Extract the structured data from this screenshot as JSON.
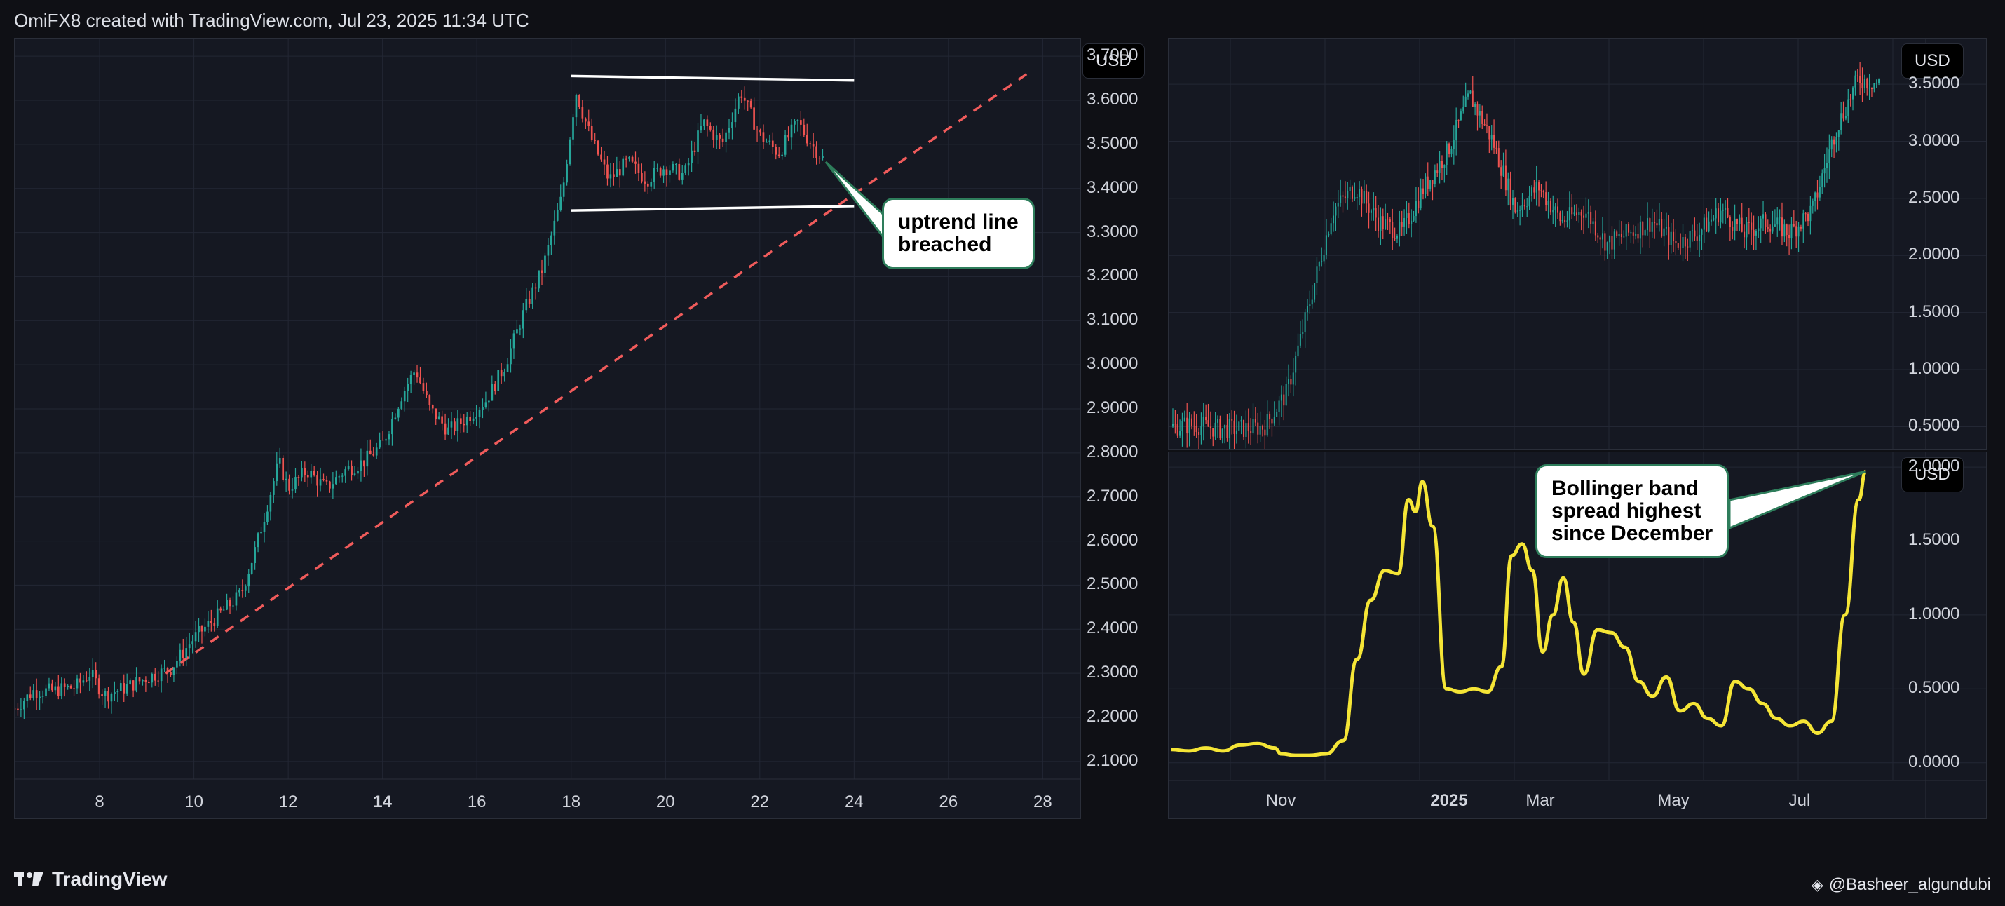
{
  "header": {
    "text": "OmiFX8 created with TradingView.com, Jul 23, 2025 11:34 UTC"
  },
  "footer": {
    "brand": "TradingView",
    "credit": "@Basheer_algundubi"
  },
  "chart_data": [
    {
      "id": "left-price",
      "type": "candlestick",
      "currency": "USD",
      "x_ticks": [
        "8",
        "10",
        "12",
        "14",
        "16",
        "18",
        "20",
        "22",
        "24",
        "26",
        "28"
      ],
      "x_range": [
        6.2,
        28.5
      ],
      "y_ticks": [
        "2.1000",
        "2.2000",
        "2.3000",
        "2.4000",
        "2.5000",
        "2.6000",
        "2.7000",
        "2.8000",
        "2.9000",
        "3.0000",
        "3.1000",
        "3.2000",
        "3.3000",
        "3.4000",
        "3.5000",
        "3.6000",
        "3.7000"
      ],
      "y_range": [
        2.06,
        3.74
      ],
      "series_close": [
        [
          6.2,
          2.22
        ],
        [
          6.6,
          2.26
        ],
        [
          7.0,
          2.26
        ],
        [
          7.5,
          2.27
        ],
        [
          7.8,
          2.3
        ],
        [
          8.1,
          2.25
        ],
        [
          8.6,
          2.27
        ],
        [
          9.0,
          2.29
        ],
        [
          9.5,
          2.31
        ],
        [
          10.0,
          2.38
        ],
        [
          10.5,
          2.43
        ],
        [
          11.0,
          2.48
        ],
        [
          11.3,
          2.58
        ],
        [
          11.6,
          2.7
        ],
        [
          11.8,
          2.78
        ],
        [
          12.0,
          2.72
        ],
        [
          12.4,
          2.76
        ],
        [
          12.8,
          2.72
        ],
        [
          13.2,
          2.76
        ],
        [
          13.6,
          2.78
        ],
        [
          14.0,
          2.82
        ],
        [
          14.4,
          2.93
        ],
        [
          14.7,
          2.99
        ],
        [
          15.0,
          2.9
        ],
        [
          15.4,
          2.85
        ],
        [
          15.8,
          2.88
        ],
        [
          16.2,
          2.92
        ],
        [
          16.6,
          3.0
        ],
        [
          17.0,
          3.12
        ],
        [
          17.4,
          3.22
        ],
        [
          17.8,
          3.38
        ],
        [
          18.1,
          3.62
        ],
        [
          18.4,
          3.52
        ],
        [
          18.8,
          3.42
        ],
        [
          19.2,
          3.46
        ],
        [
          19.6,
          3.42
        ],
        [
          20.0,
          3.45
        ],
        [
          20.4,
          3.43
        ],
        [
          20.8,
          3.55
        ],
        [
          21.2,
          3.5
        ],
        [
          21.6,
          3.62
        ],
        [
          22.0,
          3.52
        ],
        [
          22.4,
          3.48
        ],
        [
          22.8,
          3.55
        ],
        [
          23.1,
          3.5
        ],
        [
          23.4,
          3.46
        ]
      ],
      "annotations": [
        {
          "type": "trendline",
          "style": "dashed",
          "color": "#f05b5b",
          "from": [
            9.4,
            2.3
          ],
          "to": [
            27.8,
            3.67
          ]
        },
        {
          "type": "channel-upper",
          "color": "#ffffff",
          "from": [
            18.0,
            3.655
          ],
          "to": [
            24.0,
            3.645
          ]
        },
        {
          "type": "channel-lower",
          "color": "#ffffff",
          "from": [
            18.0,
            3.35
          ],
          "to": [
            24.0,
            3.36
          ]
        }
      ],
      "callout": "uptrend line\nbreached"
    },
    {
      "id": "right-price",
      "type": "candlestick",
      "currency": "USD",
      "y_ticks": [
        "0.5000",
        "1.0000",
        "1.5000",
        "2.0000",
        "2.5000",
        "3.0000",
        "3.5000"
      ],
      "y_range": [
        0.3,
        3.9
      ],
      "series_close": [
        [
          0,
          0.5
        ],
        [
          10,
          0.52
        ],
        [
          20,
          0.48
        ],
        [
          30,
          0.48
        ],
        [
          40,
          0.5
        ],
        [
          50,
          0.8
        ],
        [
          60,
          1.6
        ],
        [
          70,
          2.4
        ],
        [
          80,
          2.6
        ],
        [
          90,
          2.3
        ],
        [
          100,
          2.2
        ],
        [
          110,
          2.6
        ],
        [
          120,
          2.9
        ],
        [
          130,
          3.4
        ],
        [
          140,
          3.0
        ],
        [
          150,
          2.4
        ],
        [
          160,
          2.6
        ],
        [
          170,
          2.3
        ],
        [
          180,
          2.4
        ],
        [
          190,
          2.1
        ],
        [
          200,
          2.2
        ],
        [
          210,
          2.3
        ],
        [
          220,
          2.1
        ],
        [
          230,
          2.2
        ],
        [
          240,
          2.4
        ],
        [
          250,
          2.2
        ],
        [
          260,
          2.3
        ],
        [
          270,
          2.2
        ],
        [
          280,
          2.4
        ],
        [
          290,
          3.1
        ],
        [
          300,
          3.55
        ],
        [
          310,
          3.5
        ]
      ]
    },
    {
      "id": "right-bbw",
      "type": "line",
      "color": "#f5e536",
      "currency": "USD",
      "x_ticks": [
        "Nov",
        "2025",
        "Mar",
        "May",
        "Jul"
      ],
      "y_ticks": [
        "0.0000",
        "0.5000",
        "1.0000",
        "1.5000",
        "2.0000"
      ],
      "y_range": [
        -0.12,
        2.1
      ],
      "series": [
        [
          0,
          0.09
        ],
        [
          5,
          0.08
        ],
        [
          10,
          0.1
        ],
        [
          15,
          0.08
        ],
        [
          20,
          0.12
        ],
        [
          25,
          0.13
        ],
        [
          30,
          0.1
        ],
        [
          32,
          0.06
        ],
        [
          36,
          0.05
        ],
        [
          40,
          0.05
        ],
        [
          45,
          0.06
        ],
        [
          50,
          0.15
        ],
        [
          54,
          0.7
        ],
        [
          58,
          1.1
        ],
        [
          62,
          1.3
        ],
        [
          66,
          1.28
        ],
        [
          69,
          1.78
        ],
        [
          71,
          1.7
        ],
        [
          73,
          1.9
        ],
        [
          76,
          1.6
        ],
        [
          80,
          0.5
        ],
        [
          84,
          0.48
        ],
        [
          88,
          0.5
        ],
        [
          92,
          0.48
        ],
        [
          96,
          0.65
        ],
        [
          99,
          1.4
        ],
        [
          102,
          1.48
        ],
        [
          105,
          1.3
        ],
        [
          108,
          0.75
        ],
        [
          111,
          1.0
        ],
        [
          114,
          1.25
        ],
        [
          117,
          0.95
        ],
        [
          120,
          0.6
        ],
        [
          124,
          0.9
        ],
        [
          128,
          0.88
        ],
        [
          132,
          0.78
        ],
        [
          136,
          0.55
        ],
        [
          140,
          0.45
        ],
        [
          144,
          0.58
        ],
        [
          148,
          0.35
        ],
        [
          152,
          0.4
        ],
        [
          156,
          0.3
        ],
        [
          160,
          0.25
        ],
        [
          164,
          0.55
        ],
        [
          168,
          0.5
        ],
        [
          172,
          0.4
        ],
        [
          176,
          0.3
        ],
        [
          180,
          0.25
        ],
        [
          184,
          0.28
        ],
        [
          188,
          0.2
        ],
        [
          192,
          0.28
        ],
        [
          196,
          1.0
        ],
        [
          200,
          1.78
        ],
        [
          202,
          1.97
        ]
      ],
      "callout": "Bollinger band\nspread highest\nsince December"
    }
  ]
}
